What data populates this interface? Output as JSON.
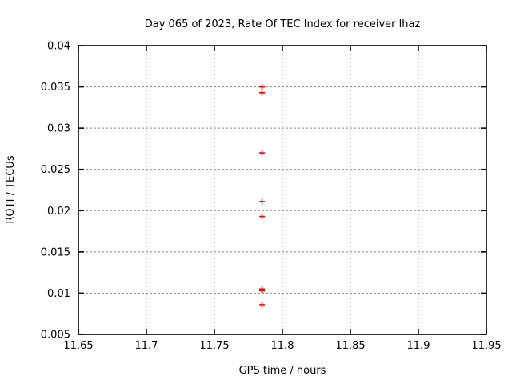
{
  "window": {
    "background": "#ffffff"
  },
  "colors": {
    "background": "#ffffff",
    "plot_border": "#000000",
    "grid": "#858585",
    "text": "#000000",
    "marker": "#ff0000"
  },
  "chart_data": {
    "type": "scatter",
    "title": "Day 065 of 2023, Rate Of TEC Index for receiver lhaz",
    "xlabel": "GPS time / hours",
    "ylabel": "ROTI / TECUs",
    "xlim": [
      11.65,
      11.95
    ],
    "ylim": [
      0.005,
      0.04
    ],
    "grid": true,
    "legend": "none",
    "xticks": [
      {
        "v": 11.65,
        "label": "11.65"
      },
      {
        "v": 11.7,
        "label": "11.7"
      },
      {
        "v": 11.75,
        "label": "11.75"
      },
      {
        "v": 11.8,
        "label": "11.8"
      },
      {
        "v": 11.85,
        "label": "11.85"
      },
      {
        "v": 11.9,
        "label": "11.9"
      },
      {
        "v": 11.95,
        "label": "11.95"
      }
    ],
    "yticks": [
      {
        "v": 0.005,
        "label": "0.005"
      },
      {
        "v": 0.01,
        "label": "0.01"
      },
      {
        "v": 0.015,
        "label": "0.015"
      },
      {
        "v": 0.02,
        "label": "0.02"
      },
      {
        "v": 0.025,
        "label": "0.025"
      },
      {
        "v": 0.03,
        "label": "0.03"
      },
      {
        "v": 0.035,
        "label": "0.035"
      },
      {
        "v": 0.04,
        "label": "0.04"
      }
    ],
    "series": [
      {
        "name": "ROTI",
        "marker": "plus",
        "color": "#ff0000",
        "points": [
          [
            11.785,
            0.035
          ],
          [
            11.785,
            0.0343
          ],
          [
            11.785,
            0.027
          ],
          [
            11.785,
            0.0211
          ],
          [
            11.785,
            0.0193
          ],
          [
            11.785,
            0.0105
          ],
          [
            11.785,
            0.0103
          ],
          [
            11.785,
            0.0086
          ]
        ]
      }
    ]
  }
}
